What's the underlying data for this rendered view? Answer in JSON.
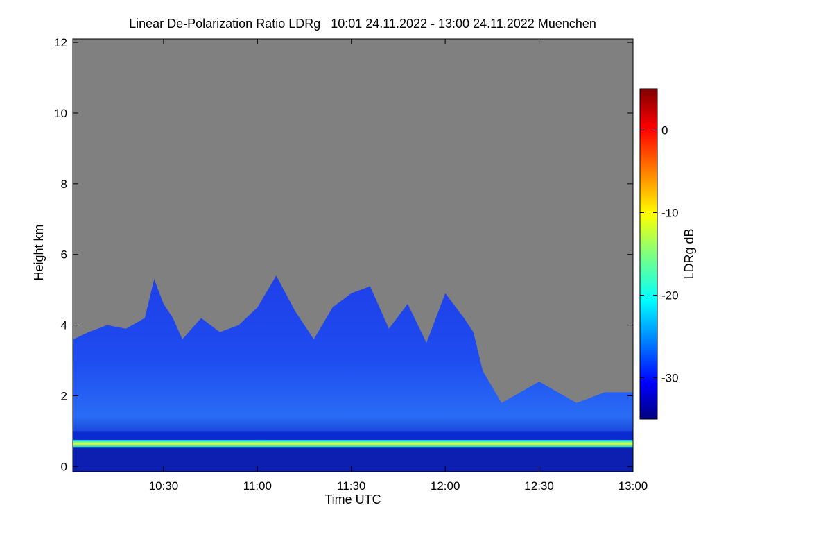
{
  "chart_data": {
    "type": "heatmap",
    "title": "Linear De-Polarization Ratio LDRg   10:01 24.11.2022 - 13:00 24.11.2022 Muenchen",
    "xlabel": "Time UTC",
    "ylabel": "Height km",
    "colorbar_label": "LDRg dB",
    "x_ticks": [
      "10:30",
      "11:00",
      "11:30",
      "12:00",
      "12:30",
      "13:00"
    ],
    "x_tick_hours": [
      10.5,
      11.0,
      11.5,
      12.0,
      12.5,
      13.0
    ],
    "xlim_hours": [
      10.0167,
      13.0
    ],
    "y_ticks": [
      0,
      2,
      4,
      6,
      8,
      10,
      12
    ],
    "ylim": [
      -0.15,
      12.1
    ],
    "colorbar_ticks": [
      0,
      -10,
      -20,
      -30
    ],
    "colorbar_range": [
      -35,
      5
    ],
    "colormap": "jet",
    "background_color": "#808080",
    "cloud_top_km": [
      [
        10.02,
        3.6
      ],
      [
        10.1,
        3.8
      ],
      [
        10.2,
        4.0
      ],
      [
        10.3,
        3.9
      ],
      [
        10.4,
        4.2
      ],
      [
        10.45,
        5.3
      ],
      [
        10.5,
        4.6
      ],
      [
        10.55,
        4.2
      ],
      [
        10.6,
        3.6
      ],
      [
        10.7,
        4.2
      ],
      [
        10.8,
        3.8
      ],
      [
        10.9,
        4.0
      ],
      [
        11.0,
        4.5
      ],
      [
        11.1,
        5.4
      ],
      [
        11.2,
        4.4
      ],
      [
        11.3,
        3.6
      ],
      [
        11.4,
        4.5
      ],
      [
        11.5,
        4.9
      ],
      [
        11.6,
        5.1
      ],
      [
        11.7,
        3.9
      ],
      [
        11.8,
        4.6
      ],
      [
        11.9,
        3.5
      ],
      [
        12.0,
        4.9
      ],
      [
        12.1,
        4.2
      ],
      [
        12.15,
        3.8
      ],
      [
        12.2,
        2.7
      ],
      [
        12.3,
        1.8
      ],
      [
        12.5,
        2.4
      ],
      [
        12.7,
        1.8
      ],
      [
        12.85,
        2.1
      ],
      [
        13.0,
        2.1
      ]
    ],
    "boundary_layer_km": 0.65,
    "boundary_layer_ldr_db": -14,
    "cloud_ldr_db": -30
  }
}
